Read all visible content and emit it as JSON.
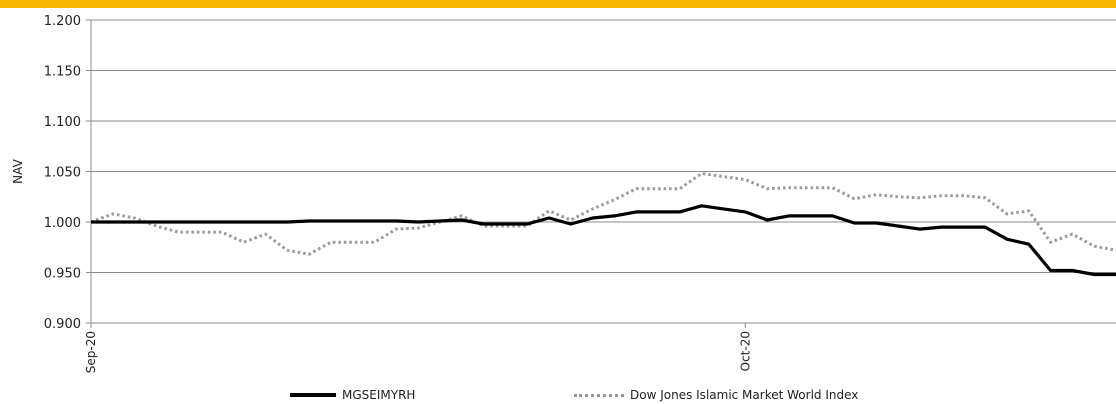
{
  "chart_data": {
    "type": "line",
    "title": "",
    "xlabel": "",
    "ylabel": "NAV",
    "ylim": [
      0.9,
      1.2
    ],
    "yticks": [
      "1.200",
      "1.150",
      "1.100",
      "1.050",
      "1.000",
      "0.950",
      "0.900"
    ],
    "xticks": [
      {
        "label": "Sep-20",
        "index": 0
      },
      {
        "label": "Oct-20",
        "index": 30
      }
    ],
    "grid": "horizontal",
    "legend": "bottom",
    "series": [
      {
        "name": "MGSEIMYRH",
        "style": "solid",
        "color": "#000000",
        "values": [
          1.0,
          1.0,
          1.0,
          1.0,
          1.0,
          1.0,
          1.0,
          1.0,
          1.0,
          1.0,
          1.001,
          1.001,
          1.001,
          1.001,
          1.001,
          1.0,
          1.001,
          1.002,
          0.998,
          0.998,
          0.998,
          1.004,
          0.998,
          1.004,
          1.006,
          1.01,
          1.01,
          1.01,
          1.016,
          1.013,
          1.01,
          1.002,
          1.006,
          1.006,
          1.006,
          0.999,
          0.999,
          0.996,
          0.993,
          0.995,
          0.995,
          0.995,
          0.983,
          0.978,
          0.952,
          0.952,
          0.948,
          0.948
        ]
      },
      {
        "name": "Dow Jones Islamic Market World Index",
        "style": "dotted",
        "color": "#999999",
        "values": [
          1.0,
          1.008,
          1.004,
          0.996,
          0.99,
          0.99,
          0.99,
          0.98,
          0.988,
          0.972,
          0.968,
          0.98,
          0.98,
          0.98,
          0.993,
          0.994,
          1.0,
          1.006,
          0.996,
          0.996,
          0.996,
          1.011,
          1.002,
          1.013,
          1.022,
          1.033,
          1.033,
          1.033,
          1.048,
          1.045,
          1.042,
          1.033,
          1.034,
          1.034,
          1.034,
          1.023,
          1.027,
          1.025,
          1.024,
          1.026,
          1.026,
          1.024,
          1.008,
          1.011,
          0.98,
          0.988,
          0.976,
          0.972
        ]
      }
    ]
  }
}
